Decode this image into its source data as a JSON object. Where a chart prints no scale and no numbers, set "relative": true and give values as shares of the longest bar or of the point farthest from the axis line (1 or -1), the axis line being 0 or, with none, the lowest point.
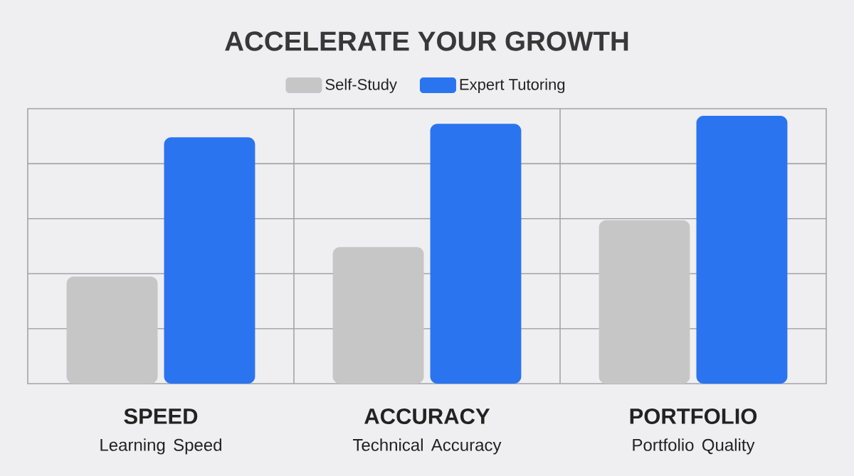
{
  "chart_data": {
    "type": "bar",
    "title": "ACCELERATE YOUR GROWTH",
    "categories": [
      "SPEED\nLearning Speed",
      "ACCURACY\nTechnical Accuracy",
      "PORTFOLIO\nPortfolio Quality"
    ],
    "series": [
      {
        "name": "Self-Study",
        "color": "#c6c6c6",
        "values": [
          0.4,
          0.51,
          0.61
        ]
      },
      {
        "name": "Expert Tutoring",
        "color": "#2b74f0",
        "values": [
          0.92,
          0.97,
          1
        ]
      }
    ],
    "relative": true,
    "grid": true,
    "legend": "top"
  }
}
